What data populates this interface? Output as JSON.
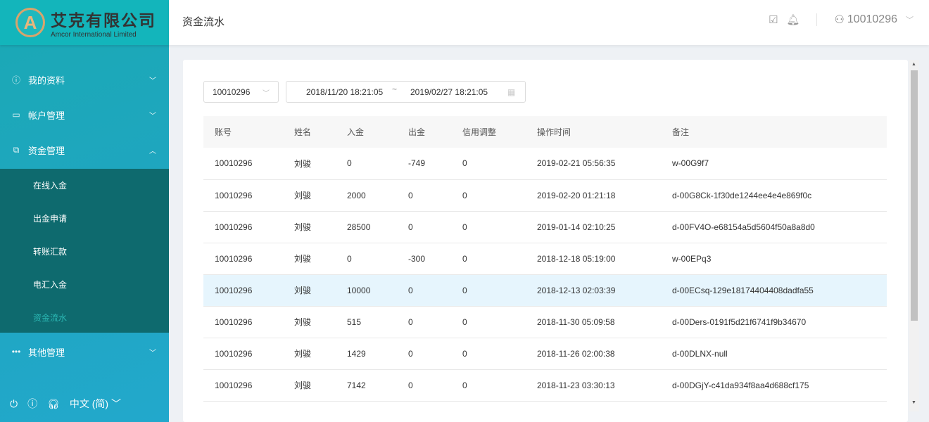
{
  "brand": {
    "cn": "艾克有限公司",
    "en": "Amcor International Limited",
    "mark": "A"
  },
  "sidebar": {
    "items": [
      {
        "label": "我的资料",
        "icon": "user-info-icon"
      },
      {
        "label": "帐户管理",
        "icon": "card-icon"
      },
      {
        "label": "资金管理",
        "icon": "money-icon",
        "expanded": true
      }
    ],
    "sub_items": [
      {
        "label": "在线入金"
      },
      {
        "label": "出金申请"
      },
      {
        "label": "转账汇款"
      },
      {
        "label": "电汇入金"
      },
      {
        "label": "资金流水",
        "active": true
      }
    ],
    "other": {
      "label": "其他管理"
    },
    "language": "中文 (简)"
  },
  "header": {
    "title": "资金流水",
    "user": "10010296"
  },
  "filters": {
    "account": "10010296",
    "start": "2018/11/20 18:21:05",
    "sep": "~",
    "end": "2019/02/27 18:21:05"
  },
  "table": {
    "columns": [
      "账号",
      "姓名",
      "入金",
      "出金",
      "信用调整",
      "操作时间",
      "备注"
    ],
    "rows": [
      [
        "10010296",
        "刘骏",
        "0",
        "-749",
        "0",
        "2019-02-21 05:56:35",
        "w-00G9f7"
      ],
      [
        "10010296",
        "刘骏",
        "2000",
        "0",
        "0",
        "2019-02-20 01:21:18",
        "d-00G8Ck-1f30de1244ee4e4e869f0c"
      ],
      [
        "10010296",
        "刘骏",
        "28500",
        "0",
        "0",
        "2019-01-14 02:10:25",
        "d-00FV4O-e68154a5d5604f50a8a8d0"
      ],
      [
        "10010296",
        "刘骏",
        "0",
        "-300",
        "0",
        "2018-12-18 05:19:00",
        "w-00EPq3"
      ],
      [
        "10010296",
        "刘骏",
        "10000",
        "0",
        "0",
        "2018-12-13 02:03:39",
        "d-00ECsq-129e18174404408dadfa55"
      ],
      [
        "10010296",
        "刘骏",
        "515",
        "0",
        "0",
        "2018-11-30 05:09:58",
        "d-00Ders-0191f5d21f6741f9b34670"
      ],
      [
        "10010296",
        "刘骏",
        "1429",
        "0",
        "0",
        "2018-11-26 02:00:38",
        "d-00DLNX-null"
      ],
      [
        "10010296",
        "刘骏",
        "7142",
        "0",
        "0",
        "2018-11-23 03:30:13",
        "d-00DGjY-c41da934f8aa4d688cf175"
      ]
    ]
  },
  "colors": {
    "sidebar": "#1fa6c0",
    "submenu": "#0e6a6e",
    "active": "#2bb7b3",
    "row_highlight": "#e6f5fd"
  }
}
